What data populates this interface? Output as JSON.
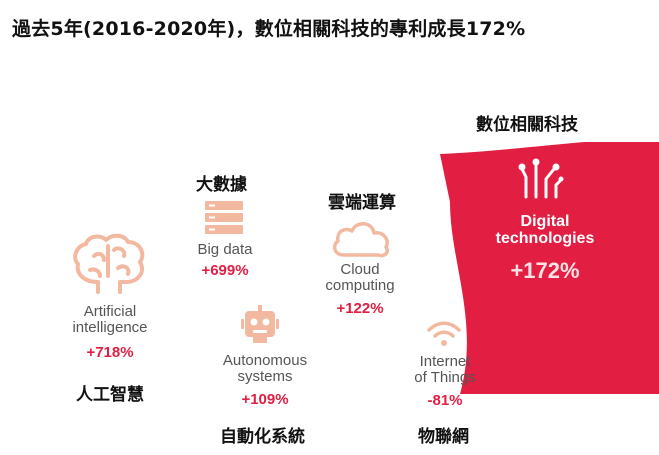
{
  "title": "過去5年(2016-2020年)，數位相關科技的專利成長172%",
  "colors": {
    "accent": "#e21e42",
    "icon": "#f2b9a0",
    "text_en": "#555555"
  },
  "digital": {
    "zh": "數位相關科技",
    "en_line1": "Digital",
    "en_line2": "technologies",
    "growth": "+172%",
    "icon": "circuit-icon"
  },
  "items": [
    {
      "key": "ai",
      "zh": "人工智慧",
      "en_line1": "Artificial",
      "en_line2": "intelligence",
      "growth": "+718%",
      "icon": "brain-icon"
    },
    {
      "key": "bigdata",
      "zh": "大數據",
      "en_line1": "Big data",
      "en_line2": "",
      "growth": "+699%",
      "icon": "server-stack-icon"
    },
    {
      "key": "cloud",
      "zh": "雲端運算",
      "en_line1": "Cloud",
      "en_line2": "computing",
      "growth": "+122%",
      "icon": "cloud-icon"
    },
    {
      "key": "autonomous",
      "zh": "自動化系統",
      "en_line1": "Autonomous",
      "en_line2": "systems",
      "growth": "+109%",
      "icon": "robot-icon"
    },
    {
      "key": "iot",
      "zh": "物聯網",
      "en_line1": "Internet",
      "en_line2": "of Things",
      "growth": "-81%",
      "icon": "wifi-icon"
    }
  ]
}
